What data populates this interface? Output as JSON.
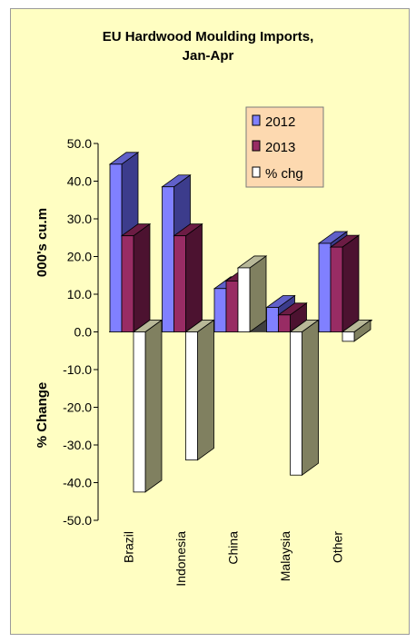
{
  "chart_data": {
    "type": "bar",
    "title_lines": [
      "EU Hardwood Moulding Imports,",
      "Jan-Apr"
    ],
    "ylabel_top": "000's cu.m",
    "ylabel_bottom": "% Change",
    "ylim": [
      -50,
      50
    ],
    "yticks": [
      "50.0",
      "40.0",
      "30.0",
      "20.0",
      "10.0",
      "0.0",
      "-10.0",
      "-20.0",
      "-30.0",
      "-40.0",
      "-50.0"
    ],
    "categories": [
      "Brazil",
      "Indonesia",
      "China",
      "Malaysia",
      "Other"
    ],
    "series": [
      {
        "name": "2012",
        "values": [
          44.5,
          38.5,
          11.5,
          6.5,
          23.5
        ]
      },
      {
        "name": "2013",
        "values": [
          25.5,
          25.5,
          13.5,
          4.5,
          22.5
        ]
      },
      {
        "name": "% chg",
        "values": [
          -42.5,
          -34.0,
          17.0,
          -38.0,
          -2.5
        ]
      }
    ],
    "legend_position": "top-right",
    "grid": false,
    "colors": {
      "background": "#fffec2",
      "legend_bg": "#fdd9b0",
      "s2012_front": "#8080ff",
      "s2012_top": "#6060c8",
      "s2012_side": "#3c3c8c",
      "s2013_front": "#982c64",
      "s2013_top": "#6c1c44",
      "s2013_side": "#4c1230",
      "chg_front": "#ffffff",
      "chg_top": "#b8b898",
      "chg_side": "#808060",
      "floor": "#404040"
    }
  }
}
